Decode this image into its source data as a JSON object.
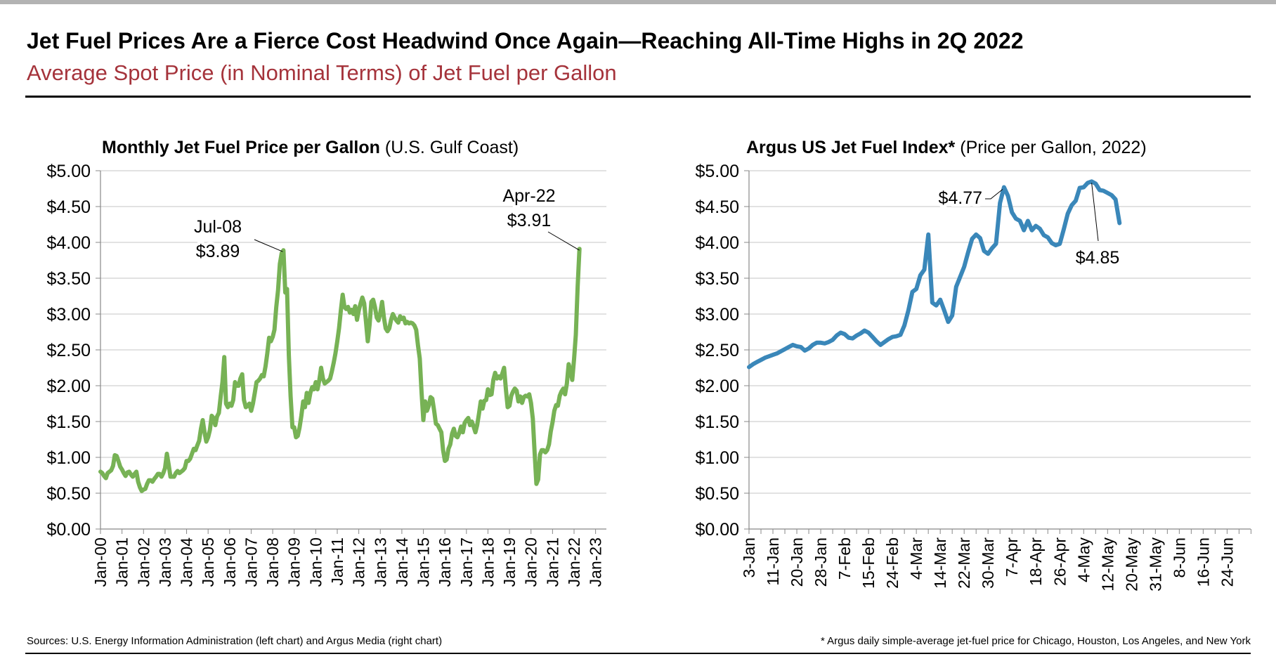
{
  "header": {
    "title": "Jet Fuel Prices Are a Fierce Cost Headwind Once Again—Reaching All-Time Highs in 2Q 2022",
    "subtitle": "Average Spot Price (in Nominal Terms) of Jet Fuel per Gallon",
    "subtitle_color": "#a5333b"
  },
  "footer": {
    "sources": "Sources: U.S. Energy Information Administration (left chart) and Argus Media (right chart)",
    "note": "* Argus daily simple-average jet-fuel price for Chicago, Houston, Los Angeles, and New York"
  },
  "chart_data": [
    {
      "type": "line",
      "title": "Monthly Jet Fuel Price per Gallon",
      "title_suffix": "(U.S. Gulf Coast)",
      "color": "#77b255",
      "frequency": "monthly",
      "x_start": "Jan-00",
      "x_tick_labels": [
        "Jan-00",
        "Jan-01",
        "Jan-02",
        "Jan-03",
        "Jan-04",
        "Jan-05",
        "Jan-06",
        "Jan-07",
        "Jan-08",
        "Jan-09",
        "Jan-10",
        "Jan-11",
        "Jan-12",
        "Jan-13",
        "Jan-14",
        "Jan-15",
        "Jan-16",
        "Jan-17",
        "Jan-18",
        "Jan-19",
        "Jan-20",
        "Jan-21",
        "Jan-22",
        "Jan-23"
      ],
      "y_tick_labels": [
        "$0.00",
        "$0.50",
        "$1.00",
        "$1.50",
        "$2.00",
        "$2.50",
        "$3.00",
        "$3.50",
        "$4.00",
        "$4.50",
        "$5.00"
      ],
      "ylim": [
        0,
        5
      ],
      "grid": true,
      "values": [
        0.8,
        0.78,
        0.74,
        0.71,
        0.78,
        0.8,
        0.82,
        0.88,
        1.03,
        1.02,
        0.95,
        0.87,
        0.83,
        0.78,
        0.74,
        0.79,
        0.8,
        0.76,
        0.73,
        0.77,
        0.8,
        0.66,
        0.58,
        0.53,
        0.55,
        0.56,
        0.63,
        0.68,
        0.68,
        0.66,
        0.7,
        0.73,
        0.77,
        0.77,
        0.73,
        0.78,
        0.85,
        1.05,
        0.9,
        0.73,
        0.73,
        0.73,
        0.78,
        0.81,
        0.78,
        0.8,
        0.82,
        0.85,
        0.95,
        0.95,
        0.98,
        1.05,
        1.12,
        1.1,
        1.17,
        1.23,
        1.4,
        1.52,
        1.35,
        1.22,
        1.28,
        1.38,
        1.58,
        1.55,
        1.45,
        1.57,
        1.62,
        1.85,
        2.05,
        2.4,
        1.75,
        1.7,
        1.75,
        1.72,
        1.8,
        2.05,
        2.0,
        2.0,
        2.1,
        2.16,
        1.8,
        1.7,
        1.72,
        1.75,
        1.65,
        1.75,
        1.9,
        2.05,
        2.07,
        2.1,
        2.15,
        2.13,
        2.27,
        2.45,
        2.67,
        2.62,
        2.68,
        2.78,
        3.1,
        3.33,
        3.7,
        3.85,
        3.89,
        3.3,
        3.35,
        2.42,
        1.85,
        1.42,
        1.42,
        1.28,
        1.3,
        1.42,
        1.58,
        1.78,
        1.7,
        1.9,
        1.76,
        1.9,
        1.98,
        1.95,
        2.05,
        1.95,
        2.08,
        2.25,
        2.1,
        2.03,
        2.05,
        2.07,
        2.1,
        2.2,
        2.32,
        2.45,
        2.62,
        2.8,
        3.05,
        3.27,
        3.1,
        3.07,
        3.1,
        3.02,
        3.06,
        3.0,
        3.11,
        2.92,
        3.05,
        3.15,
        3.23,
        3.15,
        2.9,
        2.62,
        2.85,
        3.17,
        3.2,
        3.1,
        2.95,
        2.91,
        3.02,
        3.17,
        2.95,
        2.8,
        2.76,
        2.8,
        2.92,
        3.0,
        2.95,
        2.91,
        2.88,
        2.97,
        2.93,
        2.95,
        2.87,
        2.89,
        2.87,
        2.88,
        2.87,
        2.84,
        2.78,
        2.56,
        2.38,
        1.9,
        1.52,
        1.78,
        1.65,
        1.72,
        1.84,
        1.82,
        1.65,
        1.47,
        1.45,
        1.4,
        1.35,
        1.1,
        0.95,
        0.97,
        1.12,
        1.18,
        1.33,
        1.4,
        1.3,
        1.28,
        1.34,
        1.43,
        1.35,
        1.48,
        1.52,
        1.55,
        1.45,
        1.5,
        1.43,
        1.35,
        1.45,
        1.61,
        1.78,
        1.68,
        1.79,
        1.8,
        1.95,
        1.87,
        1.88,
        2.08,
        2.18,
        2.1,
        2.13,
        2.1,
        2.17,
        2.25,
        1.95,
        1.7,
        1.72,
        1.86,
        1.92,
        1.96,
        1.93,
        1.78,
        1.85,
        1.76,
        1.84,
        1.86,
        1.85,
        1.88,
        1.76,
        1.54,
        1.08,
        0.63,
        0.69,
        1.04,
        1.1,
        1.1,
        1.07,
        1.1,
        1.18,
        1.36,
        1.49,
        1.65,
        1.73,
        1.72,
        1.86,
        1.92,
        1.96,
        1.88,
        2.03,
        2.3,
        2.21,
        2.08,
        2.37,
        2.71,
        3.38,
        3.91
      ],
      "annotations": [
        {
          "label": "Jul-08",
          "value_label": "$3.89",
          "x": "Jul-08",
          "y": 3.89
        },
        {
          "label": "Apr-22",
          "value_label": "$3.91",
          "x": "Apr-22",
          "y": 3.91
        }
      ]
    },
    {
      "type": "line",
      "title": "Argus US Jet Fuel Index*",
      "title_suffix": "(Price per Gallon, 2022)",
      "color": "#3a87b9",
      "frequency": "trading days from 3-Jan",
      "x_tick_labels": [
        "3-Jan",
        "11-Jan",
        "20-Jan",
        "28-Jan",
        "7-Feb",
        "15-Feb",
        "24-Feb",
        "4-Mar",
        "14-Mar",
        "22-Mar",
        "30-Mar",
        "7-Apr",
        "18-Apr",
        "26-Apr",
        "4-May",
        "12-May",
        "20-May",
        "31-May",
        "8-Jun",
        "16-Jun",
        "24-Jun"
      ],
      "y_tick_labels": [
        "$0.00",
        "$0.50",
        "$1.00",
        "$1.50",
        "$2.00",
        "$2.50",
        "$3.00",
        "$3.50",
        "$4.00",
        "$4.50",
        "$5.00"
      ],
      "ylim": [
        0,
        5
      ],
      "grid": true,
      "values": [
        2.26,
        2.3,
        2.33,
        2.36,
        2.39,
        2.41,
        2.43,
        2.45,
        2.48,
        2.51,
        2.54,
        2.57,
        2.55,
        2.54,
        2.49,
        2.52,
        2.57,
        2.6,
        2.6,
        2.59,
        2.61,
        2.64,
        2.7,
        2.74,
        2.72,
        2.67,
        2.66,
        2.7,
        2.73,
        2.77,
        2.74,
        2.68,
        2.62,
        2.57,
        2.61,
        2.65,
        2.68,
        2.69,
        2.71,
        2.84,
        3.05,
        3.31,
        3.35,
        3.54,
        3.62,
        4.11,
        3.16,
        3.12,
        3.2,
        3.05,
        2.89,
        2.98,
        3.38,
        3.52,
        3.66,
        3.86,
        4.05,
        4.11,
        4.06,
        3.88,
        3.84,
        3.92,
        3.98,
        4.55,
        4.77,
        4.65,
        4.42,
        4.33,
        4.3,
        4.17,
        4.3,
        4.17,
        4.23,
        4.19,
        4.1,
        4.07,
        3.99,
        3.96,
        3.98,
        4.18,
        4.4,
        4.52,
        4.58,
        4.76,
        4.77,
        4.83,
        4.85,
        4.82,
        4.73,
        4.72,
        4.69,
        4.66,
        4.6,
        4.27
      ],
      "annotations": [
        {
          "value_label": "$4.77",
          "y": 4.77
        },
        {
          "value_label": "$4.85",
          "y": 4.85
        }
      ]
    }
  ]
}
